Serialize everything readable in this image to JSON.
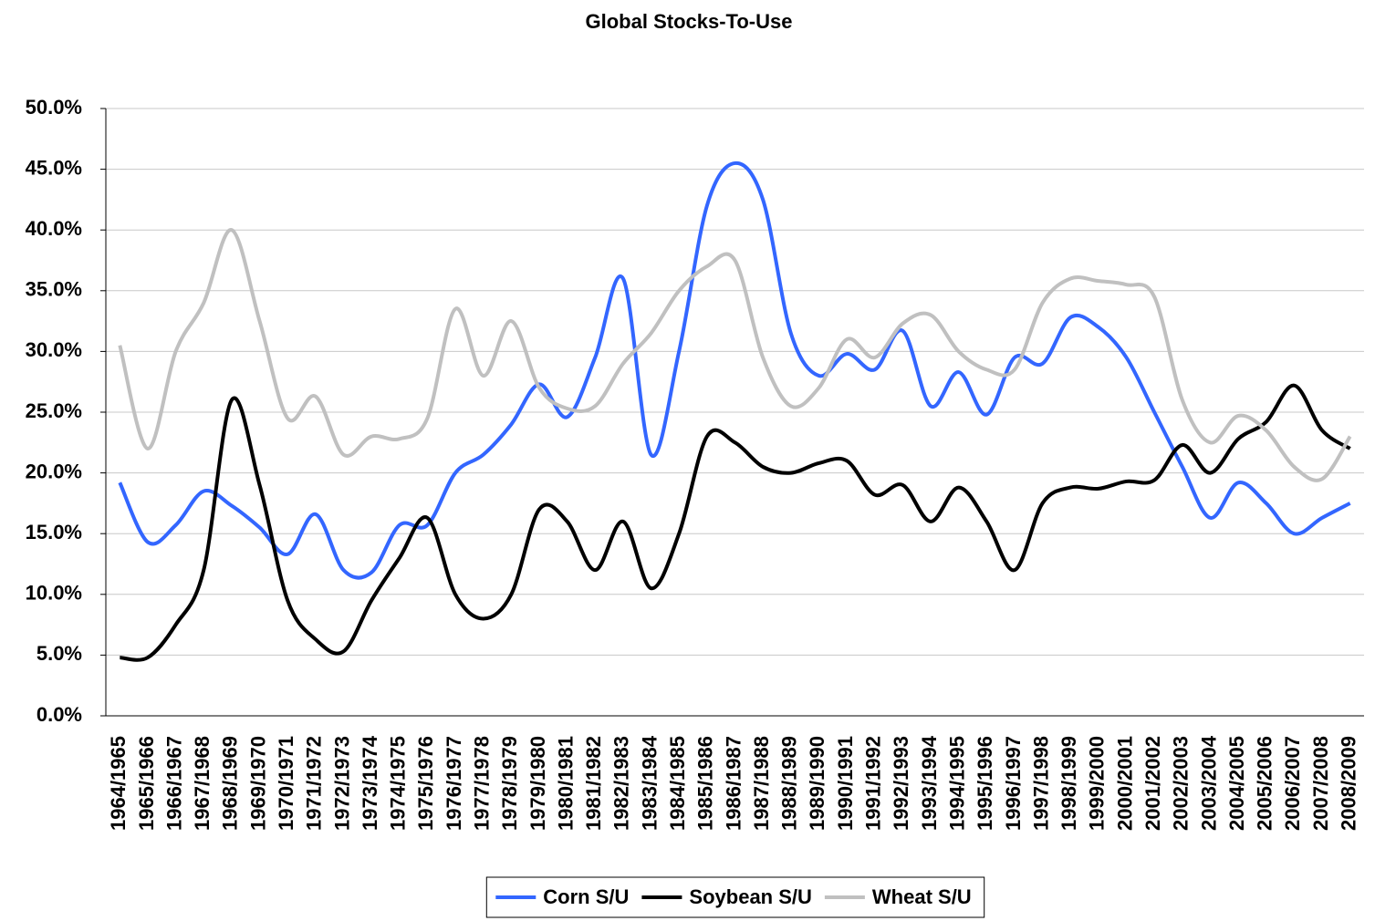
{
  "chart_data": {
    "type": "line",
    "title": "Global Stocks-To-Use",
    "categories": [
      "1964/1965",
      "1965/1966",
      "1966/1967",
      "1967/1968",
      "1968/1969",
      "1969/1970",
      "1970/1971",
      "1971/1972",
      "1972/1973",
      "1973/1974",
      "1974/1975",
      "1975/1976",
      "1976/1977",
      "1977/1978",
      "1978/1979",
      "1979/1980",
      "1980/1981",
      "1981/1982",
      "1982/1983",
      "1983/1984",
      "1984/1985",
      "1985/1986",
      "1986/1987",
      "1987/1988",
      "1988/1989",
      "1989/1990",
      "1990/1991",
      "1991/1992",
      "1992/1993",
      "1993/1994",
      "1994/1995",
      "1995/1996",
      "1996/1997",
      "1997/1998",
      "1998/1999",
      "1999/2000",
      "2000/2001",
      "2001/2002",
      "2002/2003",
      "2003/2004",
      "2004/2005",
      "2005/2006",
      "2006/2007",
      "2007/2008",
      "2008/2009"
    ],
    "series": [
      {
        "name": "Corn S/U",
        "color": "#3366ff",
        "values": [
          19.2,
          14.3,
          15.7,
          18.5,
          17.3,
          15.5,
          13.3,
          16.6,
          12.0,
          11.8,
          15.7,
          15.7,
          20.0,
          21.5,
          24.0,
          27.3,
          24.6,
          29.5,
          36.0,
          21.5,
          30.0,
          42.0,
          45.5,
          42.5,
          31.5,
          28.0,
          29.8,
          28.5,
          31.7,
          25.5,
          28.3,
          24.8,
          29.5,
          29.0,
          32.8,
          32.0,
          29.5,
          25.0,
          20.5,
          16.3,
          19.2,
          17.5,
          15.0,
          16.3,
          17.5
        ]
      },
      {
        "name": "Soybean S/U",
        "color": "#000000",
        "values": [
          4.8,
          4.8,
          7.5,
          12.0,
          26.0,
          19.0,
          9.5,
          6.3,
          5.3,
          9.5,
          13.0,
          16.3,
          10.0,
          8.0,
          10.0,
          17.0,
          16.0,
          12.0,
          16.0,
          10.5,
          15.0,
          23.0,
          22.5,
          20.5,
          20.0,
          20.8,
          21.0,
          18.2,
          19.0,
          16.0,
          18.8,
          16.0,
          12.0,
          17.5,
          18.8,
          18.7,
          19.3,
          19.4,
          22.3,
          20.0,
          22.8,
          24.2,
          27.2,
          23.5,
          22.0
        ]
      },
      {
        "name": "Wheat S/U",
        "color": "#c0c0c0",
        "values": [
          30.5,
          22.0,
          30.0,
          34.0,
          40.0,
          32.5,
          24.5,
          26.3,
          21.5,
          23.0,
          22.8,
          24.5,
          33.5,
          28.0,
          32.5,
          27.0,
          25.3,
          25.5,
          29.0,
          31.5,
          35.0,
          37.0,
          37.5,
          29.5,
          25.5,
          27.0,
          31.0,
          29.5,
          32.3,
          33.0,
          30.0,
          28.5,
          28.5,
          34.0,
          36.0,
          35.8,
          35.5,
          34.5,
          26.0,
          22.5,
          24.7,
          23.5,
          20.5,
          19.5,
          23.0
        ]
      }
    ],
    "ylim": [
      0,
      50
    ],
    "yticks": [
      {
        "value": 0,
        "label": "0.0%"
      },
      {
        "value": 5,
        "label": "5.0%"
      },
      {
        "value": 10,
        "label": "10.0%"
      },
      {
        "value": 15,
        "label": "15.0%"
      },
      {
        "value": 20,
        "label": "20.0%"
      },
      {
        "value": 25,
        "label": "25.0%"
      },
      {
        "value": 30,
        "label": "30.0%"
      },
      {
        "value": 35,
        "label": "35.0%"
      },
      {
        "value": 40,
        "label": "40.0%"
      },
      {
        "value": 45,
        "label": "45.0%"
      },
      {
        "value": 50,
        "label": "50.0%"
      }
    ],
    "grid": true,
    "legend": "bottom"
  }
}
